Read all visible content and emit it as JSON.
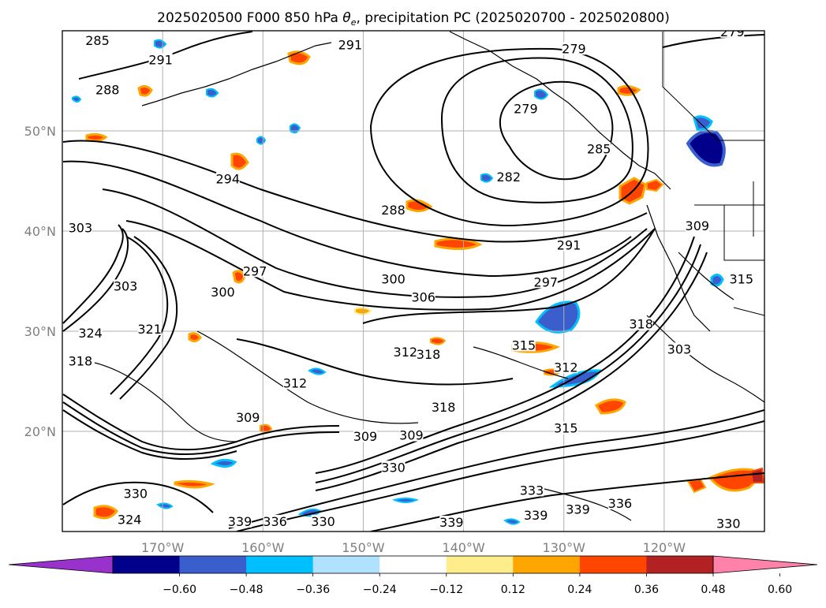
{
  "title_html_parts": {
    "prefix": "2025020500 F000 850 hPa ",
    "theta": "θ",
    "sub": "e",
    "suffix": ", precipitation PC (2025020700 - 2025020800)"
  },
  "map": {
    "lon_range": [
      -180,
      -110
    ],
    "lat_range": [
      10,
      60
    ],
    "lon_ticks": [
      {
        "value": -170,
        "label": "170°W"
      },
      {
        "value": -160,
        "label": "160°W"
      },
      {
        "value": -150,
        "label": "150°W"
      },
      {
        "value": -140,
        "label": "140°W"
      },
      {
        "value": -130,
        "label": "130°W"
      },
      {
        "value": -120,
        "label": "120°W"
      }
    ],
    "lat_ticks": [
      {
        "value": 50,
        "label": "50°N"
      },
      {
        "value": 40,
        "label": "40°N"
      },
      {
        "value": 30,
        "label": "30°N"
      },
      {
        "value": 20,
        "label": "20°N"
      }
    ],
    "grid": true,
    "theta_e_contour_labels": [
      {
        "text": "285",
        "lon": -176.5,
        "lat": 58.8
      },
      {
        "text": "291",
        "lon": -170.2,
        "lat": 56.9
      },
      {
        "text": "288",
        "lon": -175.5,
        "lat": 53.9
      },
      {
        "text": "291",
        "lon": -151.3,
        "lat": 58.4
      },
      {
        "text": "279",
        "lon": -129.0,
        "lat": 58.0
      },
      {
        "text": "279",
        "lon": -113.2,
        "lat": 59.7
      },
      {
        "text": "279",
        "lon": -133.8,
        "lat": 52.0
      },
      {
        "text": "294",
        "lon": -163.5,
        "lat": 45.0
      },
      {
        "text": "282",
        "lon": -135.5,
        "lat": 45.2
      },
      {
        "text": "285",
        "lon": -126.5,
        "lat": 48.0
      },
      {
        "text": "288",
        "lon": -147.0,
        "lat": 41.9
      },
      {
        "text": "291",
        "lon": -129.5,
        "lat": 38.4
      },
      {
        "text": "297",
        "lon": -131.8,
        "lat": 34.7
      },
      {
        "text": "300",
        "lon": -147.0,
        "lat": 35.0
      },
      {
        "text": "306",
        "lon": -144.0,
        "lat": 33.2
      },
      {
        "text": "300",
        "lon": -164.0,
        "lat": 33.7
      },
      {
        "text": "297",
        "lon": -160.8,
        "lat": 35.8
      },
      {
        "text": "303",
        "lon": -178.2,
        "lat": 40.1
      },
      {
        "text": "303",
        "lon": -173.7,
        "lat": 34.3
      },
      {
        "text": "324",
        "lon": -177.2,
        "lat": 29.6
      },
      {
        "text": "321",
        "lon": -171.3,
        "lat": 30.0
      },
      {
        "text": "318",
        "lon": -178.2,
        "lat": 26.8
      },
      {
        "text": "312",
        "lon": -145.8,
        "lat": 27.7
      },
      {
        "text": "318",
        "lon": -143.5,
        "lat": 27.5
      },
      {
        "text": "315",
        "lon": -134.0,
        "lat": 28.4
      },
      {
        "text": "312",
        "lon": -129.8,
        "lat": 26.2
      },
      {
        "text": "318",
        "lon": -122.3,
        "lat": 30.5
      },
      {
        "text": "303",
        "lon": -118.5,
        "lat": 28.0
      },
      {
        "text": "315",
        "lon": -112.3,
        "lat": 35.0
      },
      {
        "text": "309",
        "lon": -116.7,
        "lat": 40.3
      },
      {
        "text": "312",
        "lon": -156.8,
        "lat": 24.6
      },
      {
        "text": "309",
        "lon": -161.5,
        "lat": 21.2
      },
      {
        "text": "318",
        "lon": -142.0,
        "lat": 22.2
      },
      {
        "text": "309",
        "lon": -149.8,
        "lat": 19.3
      },
      {
        "text": "309",
        "lon": -145.2,
        "lat": 19.4
      },
      {
        "text": "315",
        "lon": -129.8,
        "lat": 20.1
      },
      {
        "text": "330",
        "lon": -147.0,
        "lat": 16.2
      },
      {
        "text": "330",
        "lon": -172.7,
        "lat": 13.6
      },
      {
        "text": "333",
        "lon": -133.2,
        "lat": 13.9
      },
      {
        "text": "339",
        "lon": -132.8,
        "lat": 11.4
      },
      {
        "text": "339",
        "lon": -141.2,
        "lat": 10.7
      },
      {
        "text": "339",
        "lon": -128.6,
        "lat": 12.0
      },
      {
        "text": "336",
        "lon": -124.4,
        "lat": 12.6
      },
      {
        "text": "324",
        "lon": -173.3,
        "lat": 11.0
      },
      {
        "text": "339",
        "lon": -162.3,
        "lat": 10.8
      },
      {
        "text": "336",
        "lon": -158.8,
        "lat": 10.8
      },
      {
        "text": "330",
        "lon": -154.0,
        "lat": 10.8
      },
      {
        "text": "330",
        "lon": -113.6,
        "lat": 10.6
      }
    ]
  },
  "colorbar": {
    "levels": [
      "−0.60",
      "−0.48",
      "−0.36",
      "−0.24",
      "−0.12",
      "0.12",
      "0.24",
      "0.36",
      "0.48",
      "0.60"
    ],
    "colors": [
      "#9932cc",
      "#00008b",
      "#3a5fcd",
      "#00bfff",
      "#b0e2ff",
      "#ffffff",
      "#ffec8b",
      "#ffa500",
      "#ff4500",
      "#b22222",
      "#ff82ab"
    ]
  }
}
